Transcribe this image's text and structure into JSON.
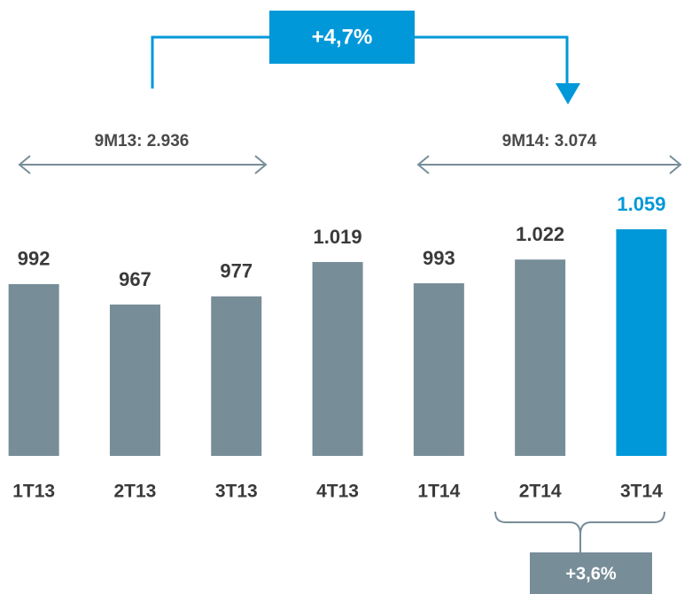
{
  "chart_data": {
    "type": "bar",
    "categories": [
      "1T13",
      "2T13",
      "3T13",
      "4T13",
      "1T14",
      "2T14",
      "3T14"
    ],
    "values": [
      992,
      967,
      977,
      1019,
      993,
      1022,
      1059
    ],
    "value_labels": [
      "992",
      "967",
      "977",
      "1.019",
      "993",
      "1.022",
      "1.059"
    ],
    "colors": [
      "#778d98",
      "#778d98",
      "#778d98",
      "#778d98",
      "#778d98",
      "#778d98",
      "#0098d8"
    ],
    "ylim": [
      782,
      1059
    ],
    "annotations": {
      "growth_top": "+4,7%",
      "period_left": "9M13: 2.936",
      "period_right": "9M14: 3.074",
      "growth_bottom": "+3,6%"
    }
  }
}
